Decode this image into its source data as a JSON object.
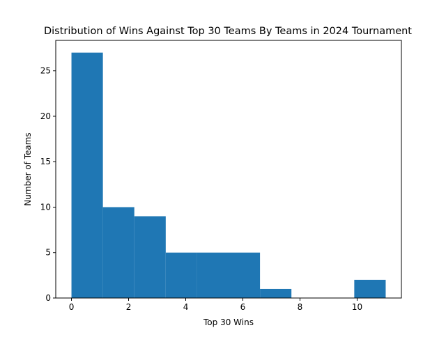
{
  "colors": {
    "bar": "#1f77b4",
    "axis": "#000000",
    "background": "#ffffff"
  },
  "chart_data": {
    "type": "bar",
    "title": "Distribution of Wins Against Top 30 Teams By Teams in 2024 Tournament",
    "xlabel": "Top 30 Wins",
    "ylabel": "Number of Teams",
    "bins": [
      {
        "start": 0.0,
        "end": 1.1,
        "count": 27
      },
      {
        "start": 1.1,
        "end": 2.2,
        "count": 10
      },
      {
        "start": 2.2,
        "end": 3.3,
        "count": 9
      },
      {
        "start": 3.3,
        "end": 4.4,
        "count": 5
      },
      {
        "start": 4.4,
        "end": 5.5,
        "count": 5
      },
      {
        "start": 5.5,
        "end": 6.6,
        "count": 5
      },
      {
        "start": 6.6,
        "end": 7.7,
        "count": 1
      },
      {
        "start": 7.7,
        "end": 8.8,
        "count": 0
      },
      {
        "start": 8.8,
        "end": 9.9,
        "count": 0
      },
      {
        "start": 9.9,
        "end": 11.0,
        "count": 2
      }
    ],
    "xlim": [
      -0.55,
      11.55
    ],
    "ylim": [
      0,
      28.35
    ],
    "xticks": [
      0,
      2,
      4,
      6,
      8,
      10
    ],
    "yticks": [
      0,
      5,
      10,
      15,
      20,
      25
    ],
    "grid": false,
    "legend": "none"
  }
}
